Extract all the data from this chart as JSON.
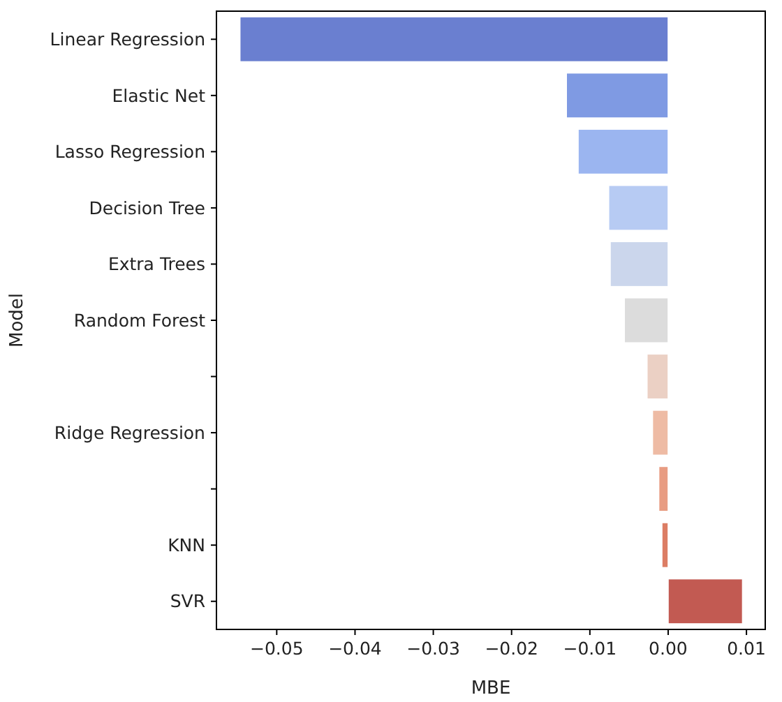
{
  "chart_data": {
    "type": "bar",
    "orientation": "horizontal",
    "xlabel": "MBE",
    "ylabel": "Model",
    "categories": [
      "Linear Regression",
      "Elastic Net",
      "Lasso Regression",
      "Decision Tree",
      "Extra Trees",
      "Random Forest",
      null,
      "Ridge Regression",
      null,
      "KNN",
      "SVR"
    ],
    "values": [
      -0.0547,
      -0.013,
      -0.0115,
      -0.0076,
      -0.0074,
      -0.0056,
      -0.0027,
      -0.002,
      -0.0012,
      -0.0008,
      0.0095
    ],
    "colors": [
      "#6a7fd0",
      "#7f9ae3",
      "#9bb5f0",
      "#b7cbf3",
      "#cbd6ec",
      "#dcdcdc",
      "#ebd0c4",
      "#eebba4",
      "#e89c82",
      "#dc7d64",
      "#c25a52"
    ],
    "xlim": [
      -0.0577,
      0.0124
    ],
    "xticks": [
      {
        "value": -0.05,
        "label": "−0.05"
      },
      {
        "value": -0.04,
        "label": "−0.04"
      },
      {
        "value": -0.03,
        "label": "−0.03"
      },
      {
        "value": -0.02,
        "label": "−0.02"
      },
      {
        "value": -0.01,
        "label": "−0.01"
      },
      {
        "value": 0,
        "label": "0.00"
      },
      {
        "value": 0.01,
        "label": "0.01"
      }
    ]
  }
}
